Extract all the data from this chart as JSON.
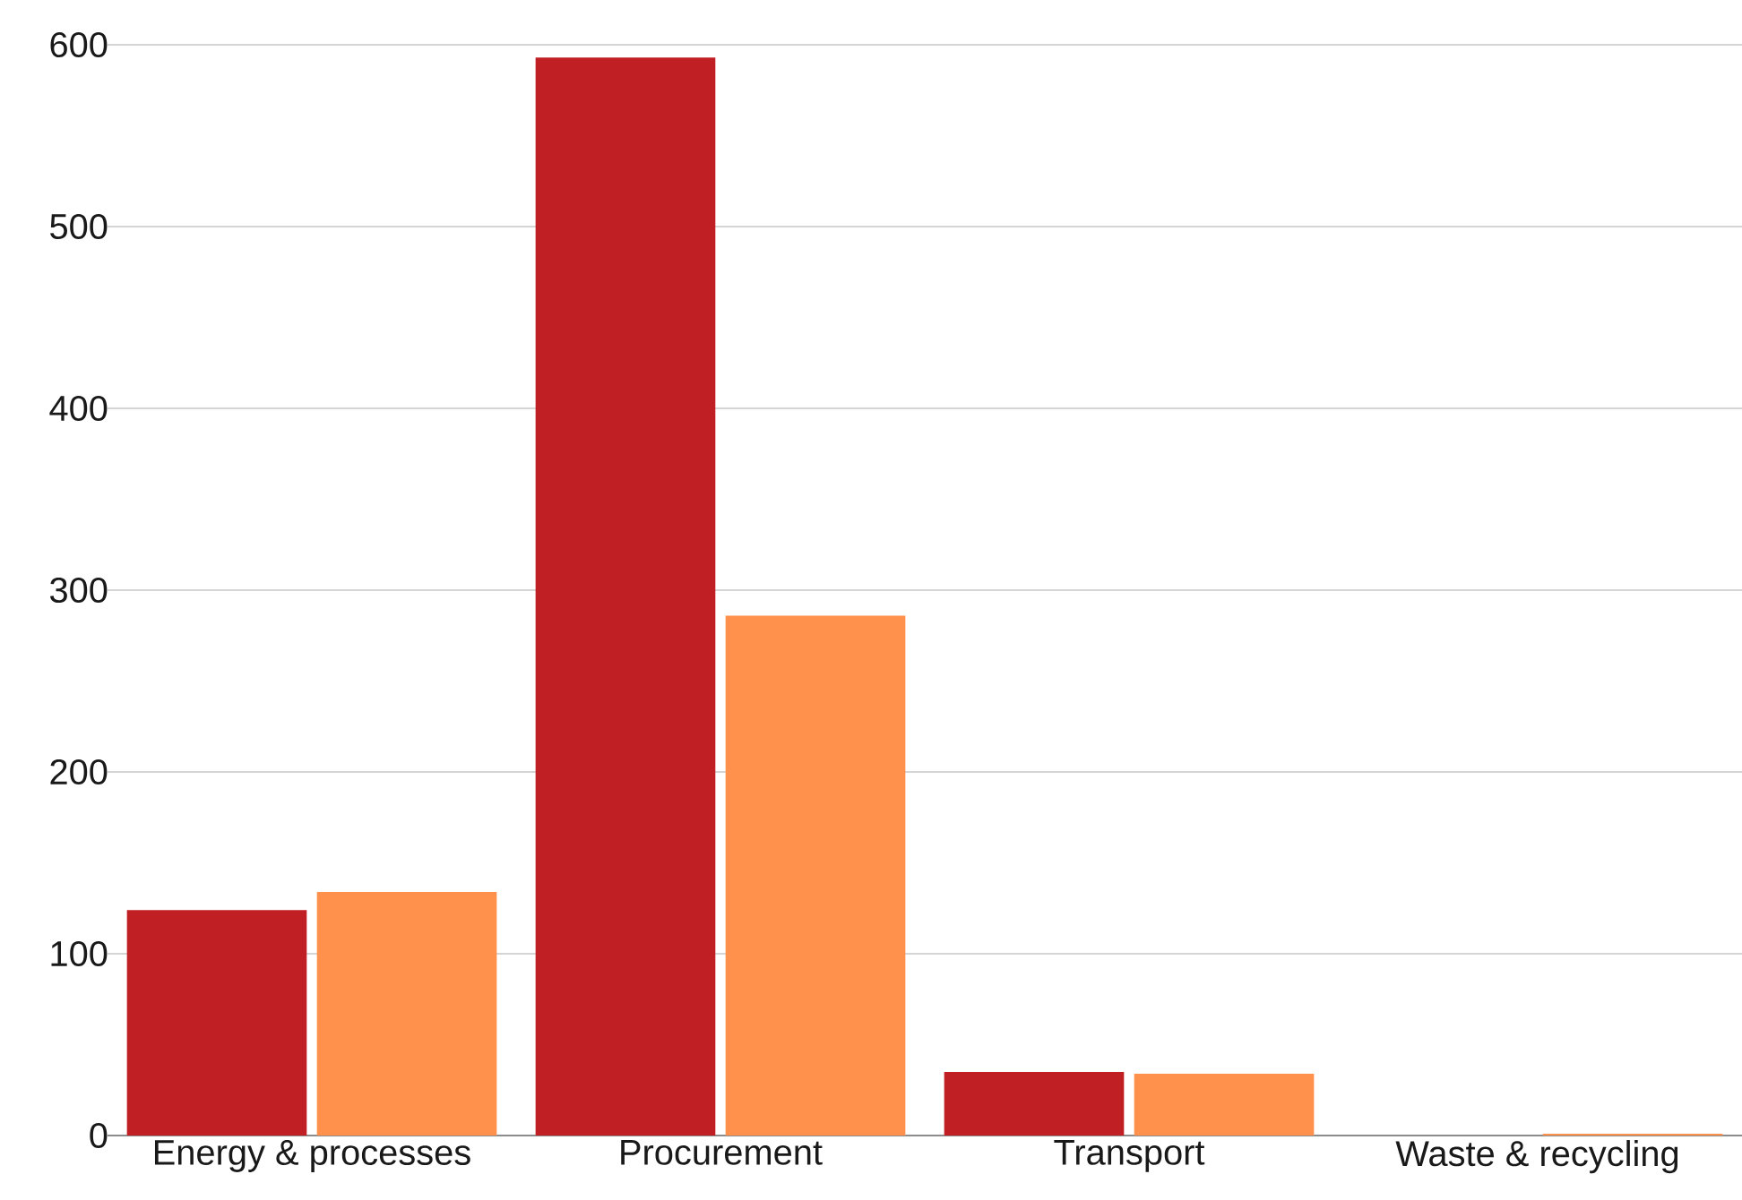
{
  "chart_data": {
    "type": "bar",
    "categories": [
      "Energy & processes",
      "Procurement",
      "Transport",
      "Waste & recycling"
    ],
    "series": [
      {
        "color": "#c01f24",
        "values": [
          124,
          593,
          35,
          0
        ]
      },
      {
        "color": "#ff914d",
        "values": [
          134,
          286,
          34,
          1
        ]
      }
    ],
    "ylim": [
      0,
      600
    ],
    "yticks": [
      0,
      100,
      200,
      300,
      400,
      500,
      600
    ],
    "grid": "y"
  }
}
